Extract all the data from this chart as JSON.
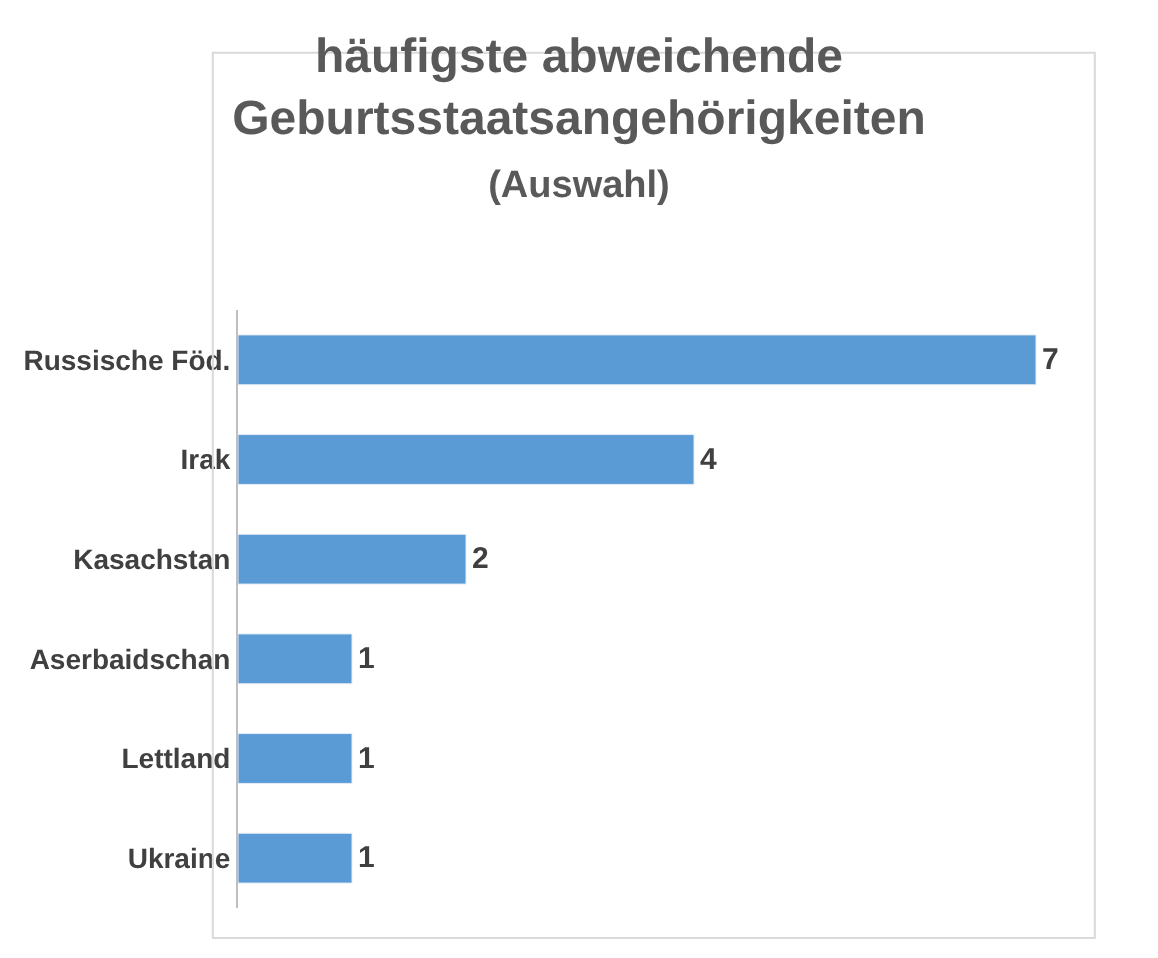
{
  "chart_data": {
    "type": "bar",
    "orientation": "horizontal",
    "title": "häufigste abweichende Geburtsstaatsangehörigkeiten",
    "subtitle": "(Auswahl)",
    "categories": [
      "Russische Föd.",
      "Irak",
      "Kasachstan",
      "Aserbaidschan",
      "Lettland",
      "Ukraine"
    ],
    "values": [
      7,
      4,
      2,
      1,
      1,
      1
    ],
    "color": "#5b9bd5",
    "data_labels": true
  }
}
